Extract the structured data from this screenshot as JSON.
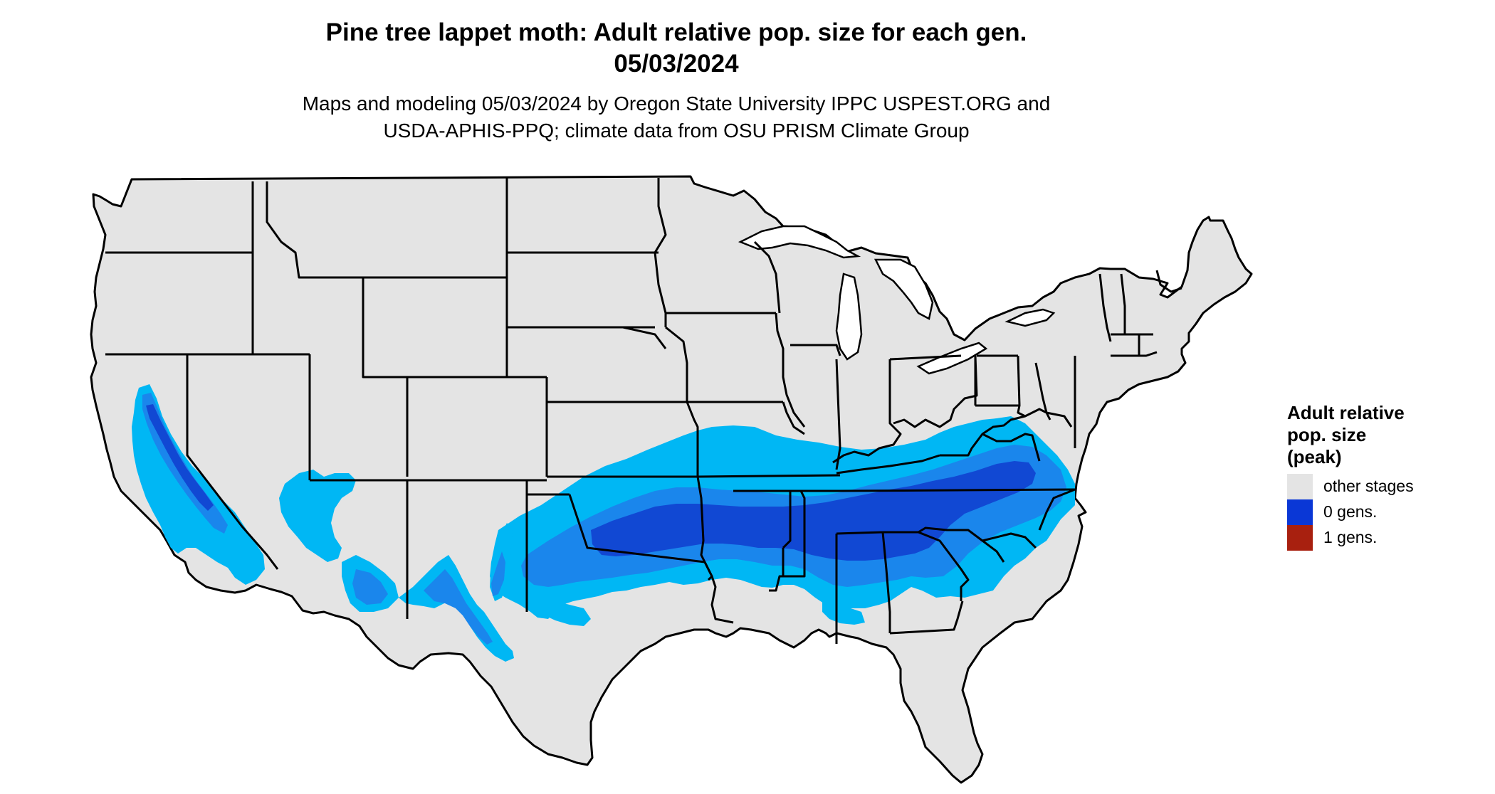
{
  "header": {
    "title_line1": "Pine tree lappet moth: Adult relative pop. size for each gen.",
    "title_line2": "05/03/2024",
    "subtitle_line1": "Maps and modeling 05/03/2024 by Oregon State University IPPC USPEST.ORG and",
    "subtitle_line2": "USDA-APHIS-PPQ; climate data from OSU PRISM Climate Group"
  },
  "map": {
    "region": "Contiguous United States",
    "base_color": "#e4e4e4",
    "border_color": "#000000",
    "light_blue": "#00b7f4",
    "mid_blue": "#1a86ec",
    "dark_blue": "#1148d3"
  },
  "legend": {
    "title_line1": "Adult relative",
    "title_line2": "pop. size",
    "title_line3": "(peak)",
    "items": [
      {
        "label": "other stages",
        "color": "#e4e4e4"
      },
      {
        "label": "0 gens.",
        "color": "#0a37d6"
      },
      {
        "label": "1 gens.",
        "color": "#a8200f"
      }
    ]
  }
}
